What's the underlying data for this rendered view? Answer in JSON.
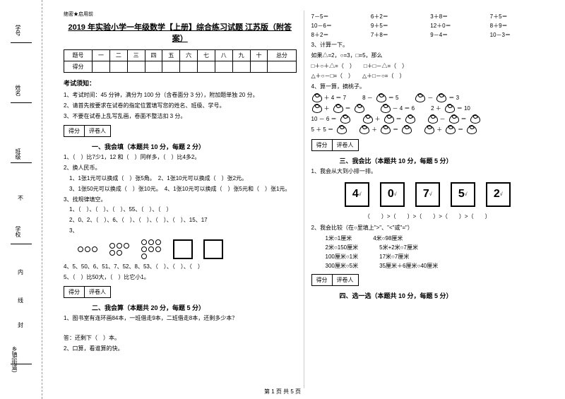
{
  "sidebar": {
    "labels": [
      "学号",
      "姓名",
      "班级",
      "学校",
      "乡镇(街道)"
    ],
    "marks": [
      "不",
      "内",
      "线",
      "封"
    ]
  },
  "header": {
    "confidential": "绝密★启用前",
    "title": "2019 年实验小学一年级数学【上册】综合练习试题 江苏版（附答案）"
  },
  "score_table": {
    "headers": [
      "题号",
      "一",
      "二",
      "三",
      "四",
      "五",
      "六",
      "七",
      "八",
      "九",
      "十",
      "总分"
    ],
    "row_label": "得分"
  },
  "instructions": {
    "title": "考试须知：",
    "items": [
      "1、考试时间：45 分钟，满分为 100 分（含卷面分 3 分），附加题单独 20 分。",
      "2、请首先按要求在试卷的指定位置填写您的姓名、班级、学号。",
      "3、不要在试卷上乱写乱画，卷面不整洁扣 3 分。"
    ]
  },
  "rating": {
    "left": "得分",
    "right": "评卷人"
  },
  "s1": {
    "title": "一、我会填（本题共 10 分，每题 2 分）",
    "q1": "1、（　）比7少1，12 和（　）同样多，（　）比4多2。",
    "q2": "2、换人民币。",
    "q2a": "　1、1张1元可以换成（　）张5角。　2、1张10元可以换成（　）张2元。",
    "q2b": "　3、1张50元可以换成（　）张10元。　4、1张10元可以换成（　）张5元和（　）张1元。",
    "q3": "3、找规律填空。",
    "q3a": "　1、（　）、（　）、（　）、55、（　）、（　）",
    "q3b": "　2、0、2、（　）、6、（　）、（　）、（　）、（　）、15、17",
    "q3c": "　3、",
    "q4": "4、5、50、6、51、7、52、8、53、（　）、（　）、（　）",
    "q5": "5、（　）比50大，（　）比它小1。"
  },
  "s2": {
    "title": "二、我会算（本题共 20 分，每题 5 分）",
    "q1": "1、图书室有连环画84本，一班借走9本，二班借走8本，还剩多少本？",
    "ans": "答：还剩下（　）本。",
    "q2": "2、口算，看谁算的快。"
  },
  "math": {
    "r1": [
      "7－5＝",
      "6＋2＝",
      "3＋8＝",
      "7＋5＝"
    ],
    "r2": [
      "10－6＝",
      "9＋5＝",
      "12＋0＝",
      "8＋9＝"
    ],
    "r3": [
      "8＋2＝",
      "7＋8＝",
      "9－4＝",
      "10－3＝"
    ]
  },
  "s3": {
    "title": "3、计算一下。",
    "line1": "如果△=2，○=3，□=5，那么",
    "line2": "□＋○＋△=（　）　　□＋□－△=（　）",
    "line3": "△＋○－□=（　）　　△＋□－○=（　）"
  },
  "s4": {
    "title": "4、算一算，摘桃子。",
    "row1a": "＋ 4 ＝ 7",
    "row1b": "8 －",
    "row1c": "＝ 5",
    "row1d": "－",
    "row1e": "＝ 3",
    "row2a": "＋",
    "row2b": "＝",
    "row2c": "－ 4 ＝ 6",
    "row2d": "2 ＋",
    "row2e": "＝ 10",
    "row3": "10 － 6 ＝",
    "row3b": "＋",
    "row3c": "＝",
    "row3d": "－",
    "row3e": "＝",
    "row4": "5 ＋ 5 ＝",
    "row4b": "＋",
    "row4c": "＝",
    "row4d": "＋",
    "row4e": "＝"
  },
  "s5": {
    "title": "三、我会比（本题共 10 分，每题 5 分）",
    "q1": "1、我会从大到小排一排。",
    "boxes": [
      "4",
      "0",
      "7",
      "5",
      "2"
    ],
    "compare": "（　　）>（　　）>（　　）>（　　）>（　　）",
    "q2": "2、我会比较（在○里填上\">\"、\"<\"或\"=\"）",
    "c1a": "1米○1厘米",
    "c1b": "4米○98厘米",
    "c2a": "2米○150厘米",
    "c2b": "5米+2米○7厘米",
    "c3a": "100厘米○1米",
    "c3b": "17米○7厘米",
    "c4a": "300厘米○5米",
    "c4b": "35厘米＋6厘米○40厘米"
  },
  "s6": {
    "title": "四、选一选（本题共 10 分，每题 5 分）"
  },
  "footer": "第 1 页 共 5 页"
}
